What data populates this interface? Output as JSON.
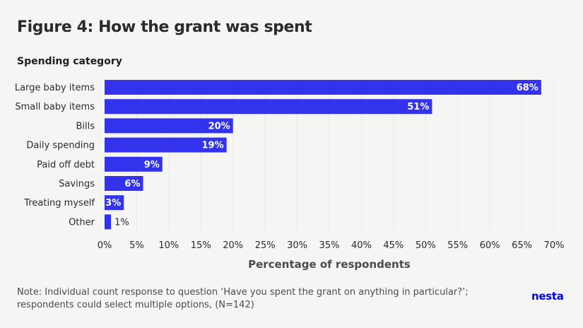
{
  "colors": {
    "background": "#f5f6f4",
    "bar": "#3333ee",
    "gridline": "#e6e8e5",
    "label_text": "#ffffff",
    "outside_label_text": "#2a2a2a",
    "logo": "#0000ff"
  },
  "logo": {
    "text": "nesta"
  },
  "note": "Note: Individual count response to question ‘Have you spent the grant on anything in particular?’; respondents could select multiple options, (N=142)",
  "chart_data": {
    "type": "bar",
    "orientation": "horizontal",
    "title": "Figure 4: How the grant was spent",
    "ylabel": "Spending category",
    "xlabel": "Percentage of respondents",
    "categories": [
      "Large baby items",
      "Small baby items",
      "Bills",
      "Daily spending",
      "Paid off debt",
      "Savings",
      "Treating myself",
      "Other"
    ],
    "values": [
      68,
      51,
      20,
      19,
      9,
      6,
      3,
      1
    ],
    "data_labels": [
      "68%",
      "51%",
      "20%",
      "19%",
      "9%",
      "6%",
      "3%",
      "1%"
    ],
    "xlim": [
      0,
      70
    ],
    "xticks": [
      0,
      5,
      10,
      15,
      20,
      25,
      30,
      35,
      40,
      45,
      50,
      55,
      60,
      65,
      70
    ],
    "xtick_labels": [
      "0%",
      "5%",
      "10%",
      "15%",
      "20%",
      "25%",
      "30%",
      "35%",
      "40%",
      "45%",
      "50%",
      "55%",
      "60%",
      "65%",
      "70%"
    ],
    "grid": "vertical",
    "legend": "none"
  }
}
